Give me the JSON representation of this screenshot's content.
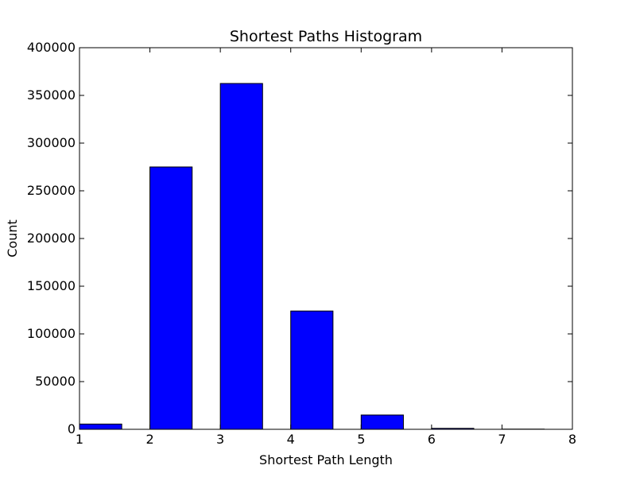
{
  "chart_data": {
    "type": "bar",
    "title": "Shortest Paths Histogram",
    "xlabel": "Shortest Path Length",
    "ylabel": "Count",
    "xlim": [
      1,
      8
    ],
    "ylim": [
      0,
      400000
    ],
    "xticks": [
      "1",
      "2",
      "3",
      "4",
      "5",
      "6",
      "7",
      "8"
    ],
    "yticks": [
      "0",
      "50000",
      "100000",
      "150000",
      "200000",
      "250000",
      "300000",
      "350000",
      "400000"
    ],
    "bar_width": 0.6,
    "bars": [
      {
        "x": 1,
        "value": 5500
      },
      {
        "x": 2,
        "value": 275000
      },
      {
        "x": 3,
        "value": 362500
      },
      {
        "x": 4,
        "value": 124000
      },
      {
        "x": 5,
        "value": 15000
      },
      {
        "x": 6,
        "value": 1000
      },
      {
        "x": 7,
        "value": 200
      }
    ],
    "bar_color": "#0000ff",
    "grid": false,
    "legend": "none"
  }
}
